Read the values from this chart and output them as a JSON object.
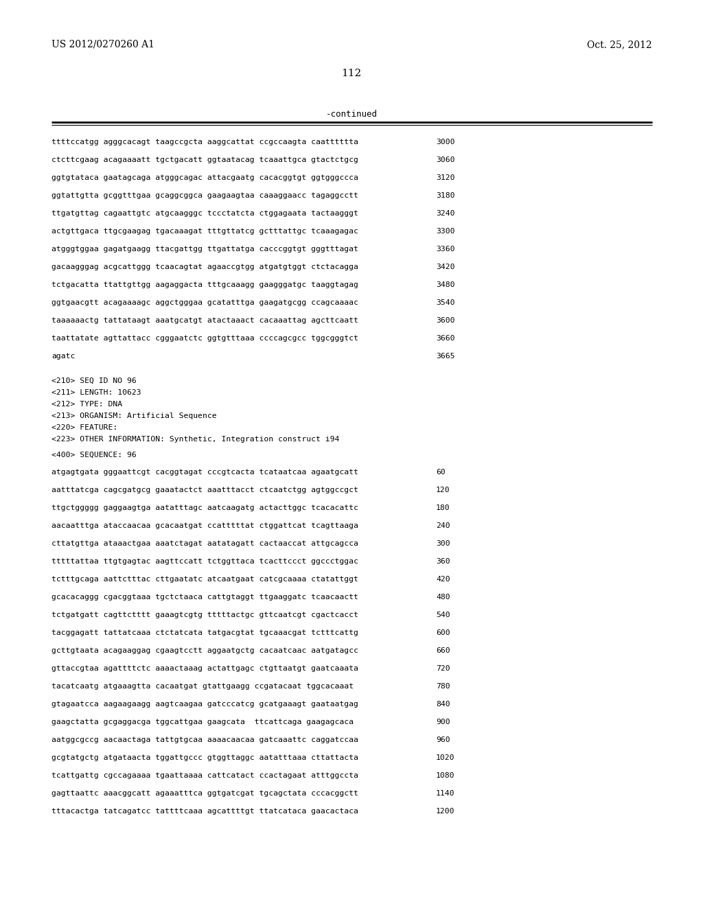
{
  "background_color": "#ffffff",
  "header_left": "US 2012/0270260 A1",
  "header_right": "Oct. 25, 2012",
  "page_number": "112",
  "continued_label": "-continued",
  "sequence_lines_top": [
    {
      "text": "ttttccatgg agggcacagt taagccgcta aaggcattat ccgccaagta caatttttta",
      "num": "3000"
    },
    {
      "text": "ctcttcgaag acagaaaatt tgctgacatt ggtaatacag tcaaattgca gtactctgcg",
      "num": "3060"
    },
    {
      "text": "ggtgtataca gaatagcaga atgggcagac attacgaatg cacacggtgt ggtgggccca",
      "num": "3120"
    },
    {
      "text": "ggtattgtta gcggtttgaa gcaggcggca gaagaagtaa caaaggaacc tagaggcctt",
      "num": "3180"
    },
    {
      "text": "ttgatgttag cagaattgtc atgcaagggc tccctatcta ctggagaata tactaagggt",
      "num": "3240"
    },
    {
      "text": "actgttgaca ttgcgaagag tgacaaagat tttgttatcg gctttattgc tcaaagagac",
      "num": "3300"
    },
    {
      "text": "atgggtggaa gagatgaagg ttacgattgg ttgattatga cacccggtgt gggtttagat",
      "num": "3360"
    },
    {
      "text": "gacaagggag acgcattggg tcaacagtat agaaccgtgg atgatgtggt ctctacagga",
      "num": "3420"
    },
    {
      "text": "tctgacatta ttattgttgg aagaggacta tttgcaaagg gaagggatgc taaggtagag",
      "num": "3480"
    },
    {
      "text": "ggtgaacgtt acagaaaagc aggctgggaa gcatatttga gaagatgcgg ccagcaaaac",
      "num": "3540"
    },
    {
      "text": "taaaaaactg tattataagt aaatgcatgt atactaaact cacaaattag agcttcaatt",
      "num": "3600"
    },
    {
      "text": "taattatate agttattacc cgggaatctc ggtgtttaaa ccccagcgcc tggcgggtct",
      "num": "3660"
    },
    {
      "text": "agatc",
      "num": "3665"
    }
  ],
  "metadata_lines": [
    "<210> SEQ ID NO 96",
    "<211> LENGTH: 10623",
    "<212> TYPE: DNA",
    "<213> ORGANISM: Artificial Sequence",
    "<220> FEATURE:",
    "<223> OTHER INFORMATION: Synthetic, Integration construct i94"
  ],
  "seq_label": "<400> SEQUENCE: 96",
  "sequence_lines_bottom": [
    {
      "text": "atgagtgata gggaattcgt cacggtagat cccgtcacta tcataatcaa agaatgcatt",
      "num": "60"
    },
    {
      "text": "aatttatcga cagcgatgcg gaaatactct aaatttacct ctcaatctgg agtggccgct",
      "num": "120"
    },
    {
      "text": "ttgctggggg gaggaagtga aatatttagc aatcaagatg actacttggc tcacacattc",
      "num": "180"
    },
    {
      "text": "aacaatttga ataccaacaa gcacaatgat ccatttttat ctggattcat tcagttaaga",
      "num": "240"
    },
    {
      "text": "cttatgttga ataaactgaa aaatctagat aatatagatt cactaaccat attgcagcca",
      "num": "300"
    },
    {
      "text": "tttttattaa ttgtgagtac aagttccatt tctggttaca tcacttccct ggccctggac",
      "num": "360"
    },
    {
      "text": "tctttgcaga aattctttac cttgaatatc atcaatgaat catcgcaaaa ctatattggt",
      "num": "420"
    },
    {
      "text": "gcacacaggg cgacggtaaa tgctctaaca cattgtaggt ttgaaggatc tcaacaactt",
      "num": "480"
    },
    {
      "text": "tctgatgatt cagttctttt gaaagtcgtg tttttactgc gttcaatcgt cgactcacct",
      "num": "540"
    },
    {
      "text": "tacggagatt tattatcaaa ctctatcata tatgacgtat tgcaaacgat tctttcattg",
      "num": "600"
    },
    {
      "text": "gcttgtaata acagaaggag cgaagtcctt aggaatgctg cacaatcaac aatgatagcc",
      "num": "660"
    },
    {
      "text": "gttaccgtaa agattttctc aaaactaaag actattgagc ctgttaatgt gaatcaaata",
      "num": "720"
    },
    {
      "text": "tacatcaatg atgaaagtta cacaatgat gtattgaagg ccgatacaat tggcacaaat",
      "num": "780"
    },
    {
      "text": "gtagaatcca aagaagaagg aagtcaagaa gatcccatcg gcatgaaagt gaataatgag",
      "num": "840"
    },
    {
      "text": "gaagctatta gcgaggacga tggcattgaa gaagcata  ttcattcaga gaagagcaca",
      "num": "900"
    },
    {
      "text": "aatggcgccg aacaactaga tattgtgcaa aaaacaacaa gatcaaattc caggatccaa",
      "num": "960"
    },
    {
      "text": "gcgtatgctg atgataacta tggattgccc gtggttaggc aatatttaaa cttattacta",
      "num": "1020"
    },
    {
      "text": "tcattgattg cgccagaaaa tgaattaaaa cattcatact ccactagaat atttggccta",
      "num": "1080"
    },
    {
      "text": "gagttaattc aaacggcatt agaaatttca ggtgatcgat tgcagctata cccacggctt",
      "num": "1140"
    },
    {
      "text": "tttacactga tatcagatcc tattttcaaa agcattttgt ttatcataca gaacactaca",
      "num": "1200"
    }
  ]
}
